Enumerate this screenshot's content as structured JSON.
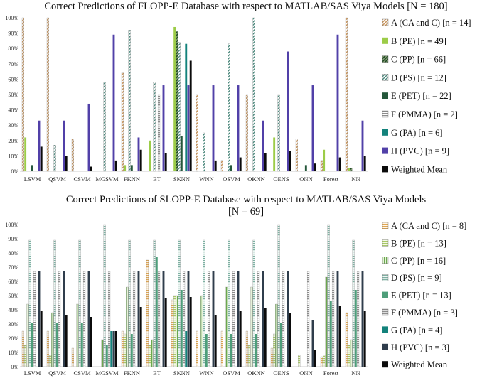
{
  "chart_data": [
    {
      "type": "bar",
      "title": "Correct Predictions of FLOPP-E Database with respect to MATLAB/SAS Viya Models [N = 180]",
      "title_lines": [
        "Correct Predictions of FLOPP-E Database with respect to MATLAB/SAS Viya Models [N = 180]"
      ],
      "xlabel": "",
      "ylabel": "",
      "ylim": [
        0,
        100
      ],
      "yticks": [
        "0%",
        "10%",
        "20%",
        "30%",
        "40%",
        "50%",
        "60%",
        "70%",
        "80%",
        "90%",
        "100%"
      ],
      "legend_position": "right",
      "grid": false,
      "categories": [
        "LSVM",
        "QSVM",
        "CSVM",
        "MGSVM",
        "FKNN",
        "BT",
        "SKNN",
        "WNN",
        "OSVM",
        "OKNN",
        "OENS",
        "ONN",
        "Forest",
        "NN"
      ],
      "series": [
        {
          "name": "A (CA and C) [n = 14]",
          "pattern": "diag-orange",
          "values": [
            100,
            100,
            21,
            0,
            64,
            0,
            0,
            50,
            7,
            50,
            0,
            21,
            7,
            100
          ]
        },
        {
          "name": "B (PE) [n = 49]",
          "pattern": "solid-lightgreen",
          "values": [
            22,
            0,
            0,
            0,
            4,
            20,
            94,
            0,
            0,
            0,
            22,
            0,
            14,
            2
          ]
        },
        {
          "name": "C (PP) [n = 66]",
          "pattern": "diag-darkgreen",
          "values": [
            0,
            0,
            0,
            0,
            0,
            0,
            91,
            0,
            0,
            0,
            0,
            0,
            0,
            2
          ]
        },
        {
          "name": "D (PS) [n = 12]",
          "pattern": "diag-teal",
          "values": [
            0,
            17,
            0,
            58,
            92,
            58,
            84,
            25,
            83,
            100,
            50,
            0,
            0,
            0
          ]
        },
        {
          "name": "E (PET) [n = 22]",
          "pattern": "solid-darkgreen",
          "values": [
            4,
            0,
            0,
            0,
            4,
            0,
            23,
            0,
            4,
            0,
            0,
            4,
            0,
            0
          ]
        },
        {
          "name": "F (PMMA) [n = 2]",
          "pattern": "hstripe-gray",
          "values": [
            0,
            0,
            0,
            0,
            0,
            50,
            0,
            0,
            0,
            0,
            0,
            0,
            0,
            0
          ]
        },
        {
          "name": "G (PA) [n = 6]",
          "pattern": "solid-teal",
          "values": [
            0,
            0,
            0,
            0,
            0,
            0,
            83,
            0,
            0,
            0,
            0,
            0,
            0,
            0
          ]
        },
        {
          "name": "H (PVC) [n = 9]",
          "pattern": "solid-purple",
          "values": [
            33,
            33,
            44,
            89,
            22,
            56,
            56,
            56,
            56,
            33,
            78,
            56,
            89,
            33
          ]
        },
        {
          "name": "Weighted Mean",
          "pattern": "solid-black",
          "values": [
            16,
            10,
            3,
            7,
            14,
            12,
            72,
            7,
            9,
            12,
            13,
            5,
            9,
            10
          ]
        }
      ]
    },
    {
      "type": "bar",
      "title": "Correct Predictions of SLOPP-E Database with respect to MATLAB/SAS Viya Models [N = 69]",
      "title_lines": [
        "Correct Predictions of SLOPP-E Database with respect to MATLAB/SAS Viya Models",
        "[N = 69]"
      ],
      "xlabel": "",
      "ylabel": "",
      "ylim": [
        0,
        100
      ],
      "yticks": [
        "0%",
        "10%",
        "20%",
        "30%",
        "40%",
        "50%",
        "60%",
        "70%",
        "80%",
        "90%",
        "100%"
      ],
      "legend_position": "right",
      "grid": false,
      "categories": [
        "LSVM",
        "QSVM",
        "CSVM",
        "MGSVM",
        "FKNN",
        "BT",
        "SKNN",
        "WNN",
        "OSVM",
        "OKNN",
        "OENS",
        "ONN",
        "Forest",
        "NN"
      ],
      "series": [
        {
          "name": "A (CA and C) [n = 8]",
          "pattern": "hstripe-orange",
          "values": [
            25,
            25,
            13,
            0,
            25,
            75,
            47,
            25,
            25,
            25,
            13,
            0,
            7,
            38
          ]
        },
        {
          "name": "B (PE) [n = 13]",
          "pattern": "hstripe-lightgreen",
          "values": [
            15,
            8,
            0,
            0,
            23,
            15,
            50,
            0,
            0,
            15,
            23,
            8,
            8,
            15
          ]
        },
        {
          "name": "C (PP) [n = 16]",
          "pattern": "vstripe-green",
          "values": [
            44,
            38,
            44,
            19,
            56,
            19,
            50,
            50,
            56,
            56,
            44,
            0,
            63,
            19
          ]
        },
        {
          "name": "D (PS) [n = 9]",
          "pattern": "hstripe-teal",
          "values": [
            89,
            89,
            89,
            100,
            89,
            89,
            89,
            89,
            89,
            89,
            100,
            0,
            100,
            89
          ]
        },
        {
          "name": "E (PET) [n = 13]",
          "pattern": "solid-medgreen",
          "values": [
            31,
            31,
            31,
            15,
            23,
            77,
            54,
            23,
            23,
            23,
            31,
            0,
            46,
            54
          ]
        },
        {
          "name": "F (PMMA) [n = 3]",
          "pattern": "hstripe-gray",
          "values": [
            67,
            67,
            67,
            67,
            67,
            67,
            67,
            67,
            67,
            67,
            67,
            67,
            67,
            67
          ]
        },
        {
          "name": "G (PA) [n = 4]",
          "pattern": "solid-teal",
          "values": [
            0,
            0,
            0,
            25,
            0,
            0,
            25,
            0,
            0,
            0,
            0,
            0,
            0,
            0
          ]
        },
        {
          "name": "H (PVC) [n = 3]",
          "pattern": "solid-slate",
          "values": [
            67,
            67,
            67,
            25,
            67,
            67,
            67,
            67,
            67,
            67,
            67,
            33,
            67,
            67
          ]
        },
        {
          "name": "Weighted Mean",
          "pattern": "solid-black",
          "values": [
            39,
            36,
            35,
            25,
            42,
            48,
            49,
            36,
            39,
            41,
            38,
            12,
            43,
            39
          ]
        }
      ]
    }
  ]
}
